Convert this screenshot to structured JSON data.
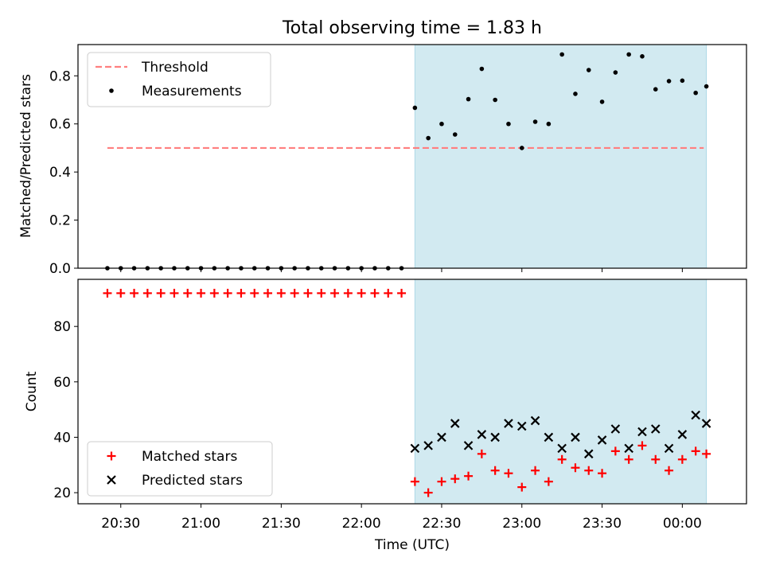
{
  "title": "Total observing time = 1.83 h",
  "xlabel": "Time (UTC)",
  "chart_data": [
    {
      "type": "scatter",
      "panel": "top",
      "ylabel": "Matched/Predicted stars",
      "ylim": [
        0,
        0.93
      ],
      "yticks": [
        "0.0",
        "0.2",
        "0.4",
        "0.6",
        "0.8"
      ],
      "xlim": [
        "20:14",
        "00:24"
      ],
      "xticks": [
        "20:30",
        "21:00",
        "21:30",
        "22:00",
        "22:30",
        "23:00",
        "23:30",
        "00:00"
      ],
      "shaded_interval": [
        "22:20",
        "00:09"
      ],
      "shade_color": "#add8e6",
      "legend": {
        "location": "upper left"
      },
      "series": [
        {
          "name": "Threshold",
          "style": "dashed-line",
          "color": "#ff7f7f",
          "x": [
            "20:25",
            "00:08"
          ],
          "y": [
            0.5,
            0.5
          ]
        },
        {
          "name": "Measurements",
          "style": "dot",
          "color": "#000000",
          "x": [
            "20:25",
            "20:30",
            "20:35",
            "20:40",
            "20:45",
            "20:50",
            "20:55",
            "21:00",
            "21:05",
            "21:10",
            "21:15",
            "21:20",
            "21:25",
            "21:30",
            "21:35",
            "21:40",
            "21:45",
            "21:50",
            "21:55",
            "22:00",
            "22:05",
            "22:10",
            "22:15",
            "22:20",
            "22:25",
            "22:30",
            "22:35",
            "22:40",
            "22:45",
            "22:50",
            "22:55",
            "23:00",
            "23:05",
            "23:10",
            "23:15",
            "23:20",
            "23:25",
            "23:30",
            "23:35",
            "23:40",
            "23:45",
            "23:50",
            "23:55",
            "00:00",
            "00:05",
            "00:09"
          ],
          "y": [
            0,
            0,
            0,
            0,
            0,
            0,
            0,
            0,
            0,
            0,
            0,
            0,
            0,
            0,
            0,
            0,
            0,
            0,
            0,
            0,
            0,
            0,
            0,
            0.667,
            0.541,
            0.6,
            0.556,
            0.703,
            0.829,
            0.7,
            0.6,
            0.5,
            0.609,
            0.6,
            0.889,
            0.725,
            0.824,
            0.692,
            0.814,
            0.889,
            0.881,
            0.744,
            0.778,
            0.78,
            0.729,
            0.756
          ]
        }
      ]
    },
    {
      "type": "scatter",
      "panel": "bottom",
      "ylabel": "Count",
      "ylim": [
        16,
        97
      ],
      "yticks": [
        "20",
        "40",
        "60",
        "80"
      ],
      "xlim": [
        "20:14",
        "00:24"
      ],
      "xticks": [
        "20:30",
        "21:00",
        "21:30",
        "22:00",
        "22:30",
        "23:00",
        "23:30",
        "00:00"
      ],
      "shaded_interval": [
        "22:20",
        "00:09"
      ],
      "shade_color": "#add8e6",
      "legend": {
        "location": "lower left"
      },
      "series": [
        {
          "name": "Matched stars",
          "marker": "plus",
          "color": "#ff0000",
          "x": [
            "20:25",
            "20:30",
            "20:35",
            "20:40",
            "20:45",
            "20:50",
            "20:55",
            "21:00",
            "21:05",
            "21:10",
            "21:15",
            "21:20",
            "21:25",
            "21:30",
            "21:35",
            "21:40",
            "21:45",
            "21:50",
            "21:55",
            "22:00",
            "22:05",
            "22:10",
            "22:15",
            "22:20",
            "22:25",
            "22:30",
            "22:35",
            "22:40",
            "22:45",
            "22:50",
            "22:55",
            "23:00",
            "23:05",
            "23:10",
            "23:15",
            "23:20",
            "23:25",
            "23:30",
            "23:35",
            "23:40",
            "23:45",
            "23:50",
            "23:55",
            "00:00",
            "00:05",
            "00:09"
          ],
          "y": [
            92,
            92,
            92,
            92,
            92,
            92,
            92,
            92,
            92,
            92,
            92,
            92,
            92,
            92,
            92,
            92,
            92,
            92,
            92,
            92,
            92,
            92,
            92,
            24,
            20,
            24,
            25,
            26,
            34,
            28,
            27,
            22,
            28,
            24,
            32,
            29,
            28,
            27,
            35,
            32,
            37,
            32,
            28,
            32,
            35,
            34
          ]
        },
        {
          "name": "Predicted stars",
          "marker": "x",
          "color": "#000000",
          "x": [
            "22:20",
            "22:25",
            "22:30",
            "22:35",
            "22:40",
            "22:45",
            "22:50",
            "22:55",
            "23:00",
            "23:05",
            "23:10",
            "23:15",
            "23:20",
            "23:25",
            "23:30",
            "23:35",
            "23:40",
            "23:45",
            "23:50",
            "23:55",
            "00:00",
            "00:05",
            "00:09"
          ],
          "y": [
            36,
            37,
            40,
            45,
            37,
            41,
            40,
            45,
            44,
            46,
            40,
            36,
            40,
            34,
            39,
            43,
            36,
            42,
            43,
            36,
            41,
            48,
            45
          ]
        }
      ]
    }
  ]
}
